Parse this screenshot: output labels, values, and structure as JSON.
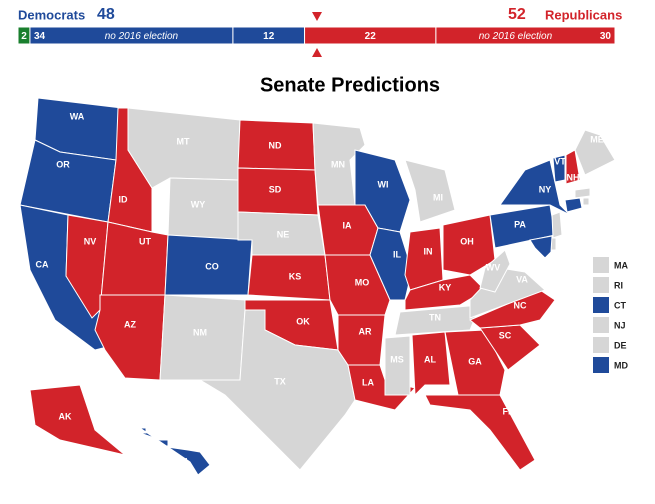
{
  "header": {
    "left_party": "Democrats",
    "left_total": 48,
    "left_color": "#1f4a9a",
    "right_total": 52,
    "right_party": "Republicans",
    "right_color": "#d2232a"
  },
  "bar": {
    "segments": [
      {
        "value": 2,
        "color": "#1a7f2e"
      },
      {
        "value": 34,
        "color": "#1f4a9a",
        "note": "no 2016 election"
      },
      {
        "value": 12,
        "color": "#1f4a9a"
      },
      {
        "value": 22,
        "color": "#d2232a"
      },
      {
        "value": 30,
        "color": "#d2232a",
        "note": "no 2016 election"
      }
    ]
  },
  "title": "Senate Predictions",
  "states": [
    {
      "label": "WA",
      "color": "#1f4a9a"
    },
    {
      "label": "OR",
      "color": "#1f4a9a"
    },
    {
      "label": "CA",
      "color": "#1f4a9a"
    },
    {
      "label": "ID",
      "color": "#d2232a"
    },
    {
      "label": "NV",
      "color": "#d2232a"
    },
    {
      "label": "UT",
      "color": "#d2232a"
    },
    {
      "label": "AZ",
      "color": "#d2232a"
    },
    {
      "label": "MT",
      "color": "#d6d6d6"
    },
    {
      "label": "WY",
      "color": "#d6d6d6"
    },
    {
      "label": "CO",
      "color": "#1f4a9a"
    },
    {
      "label": "NM",
      "color": "#d6d6d6"
    },
    {
      "label": "ND",
      "color": "#d2232a"
    },
    {
      "label": "SD",
      "color": "#d2232a"
    },
    {
      "label": "NE",
      "color": "#d6d6d6"
    },
    {
      "label": "KS",
      "color": "#d2232a"
    },
    {
      "label": "OK",
      "color": "#d2232a"
    },
    {
      "label": "TX",
      "color": "#d6d6d6"
    },
    {
      "label": "MN",
      "color": "#d6d6d6"
    },
    {
      "label": "IA",
      "color": "#d2232a"
    },
    {
      "label": "MO",
      "color": "#d2232a"
    },
    {
      "label": "AR",
      "color": "#d2232a"
    },
    {
      "label": "LA",
      "color": "#d2232a"
    },
    {
      "label": "WI",
      "color": "#1f4a9a"
    },
    {
      "label": "IL",
      "color": "#1f4a9a"
    },
    {
      "label": "MI",
      "color": "#d6d6d6"
    },
    {
      "label": "IN",
      "color": "#d2232a"
    },
    {
      "label": "OH",
      "color": "#d2232a"
    },
    {
      "label": "KY",
      "color": "#d2232a"
    },
    {
      "label": "TN",
      "color": "#d6d6d6"
    },
    {
      "label": "MS",
      "color": "#d6d6d6"
    },
    {
      "label": "AL",
      "color": "#d2232a"
    },
    {
      "label": "GA",
      "color": "#d2232a"
    },
    {
      "label": "FL",
      "color": "#d2232a"
    },
    {
      "label": "SC",
      "color": "#d2232a"
    },
    {
      "label": "NC",
      "color": "#d2232a"
    },
    {
      "label": "VA",
      "color": "#d6d6d6"
    },
    {
      "label": "WV",
      "color": "#d6d6d6"
    },
    {
      "label": "PA",
      "color": "#1f4a9a"
    },
    {
      "label": "NY",
      "color": "#1f4a9a"
    },
    {
      "label": "VT",
      "color": "#1f4a9a"
    },
    {
      "label": "NH",
      "color": "#d2232a"
    },
    {
      "label": "ME",
      "color": "#d6d6d6"
    },
    {
      "label": "AK",
      "color": "#d2232a"
    },
    {
      "label": "HI",
      "color": "#1f4a9a"
    }
  ],
  "small_states": [
    {
      "label": "MA",
      "color": "#d6d6d6"
    },
    {
      "label": "RI",
      "color": "#d6d6d6"
    },
    {
      "label": "CT",
      "color": "#1f4a9a"
    },
    {
      "label": "NJ",
      "color": "#d6d6d6"
    },
    {
      "label": "DE",
      "color": "#d6d6d6"
    },
    {
      "label": "MD",
      "color": "#1f4a9a"
    }
  ]
}
